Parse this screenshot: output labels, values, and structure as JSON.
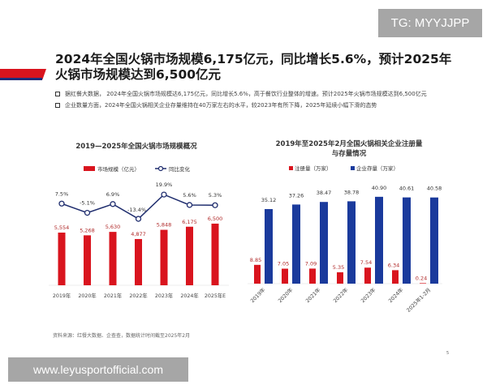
{
  "watermark_tg": "TG: MYYJJPP",
  "title": "2024年全国火锅市场规模6,175亿元，同比增长5.6%，预计2025年火锅市场规模达到6,500亿元",
  "bullets": [
    "据红餐大数据， 2024年全国火锅市场规模达6,175亿元，同比增长5.6%，高于餐饮行业整体的增速。预计2025年火锅市场规模达到6,500亿元",
    "企业数量方面，2024年全国火锅相关企业存量维持在40万家左右的水平，较2023年有所下降，2025年延续小幅下滑的态势"
  ],
  "source": "资料来源：红餐大数据、企查查，数据统计时间截至2025年2月",
  "page_number": "5",
  "website": "www.leyusportofficial.com",
  "colors": {
    "red": "#d9141e",
    "navy": "#1f2d6e",
    "blue": "#1a3a9c"
  },
  "chart_data": [
    {
      "type": "bar+line",
      "title": "2019—2025年全国火锅市场规模概况",
      "categories": [
        "2019年",
        "2020年",
        "2021年",
        "2022年",
        "2023年",
        "2024年",
        "2025年E"
      ],
      "series": [
        {
          "name": "市场规模（亿元）",
          "type": "bar",
          "values": [
            5554,
            5268,
            5630,
            4877,
            5848,
            6175,
            6500
          ],
          "labels": [
            "5,554",
            "5,268",
            "5,630",
            "4,877",
            "5,848",
            "6,175",
            "6,500"
          ]
        },
        {
          "name": "同比变化",
          "type": "line",
          "values": [
            7.5,
            -5.1,
            6.9,
            -13.4,
            19.9,
            5.6,
            5.3
          ],
          "labels": [
            "7.5%",
            "-5.1%",
            "6.9%",
            "-13.4%",
            "19.9%",
            "5.6%",
            "5.3%"
          ]
        }
      ],
      "legend": "top",
      "grid": false
    },
    {
      "type": "bar",
      "title": "2019年至2025年2月全国火锅相关企业注册量与存量情况",
      "categories": [
        "2019年",
        "2020年",
        "2021年",
        "2022年",
        "2023年",
        "2024年",
        "2025年1-2月"
      ],
      "series": [
        {
          "name": "注册量（万家）",
          "values": [
            8.85,
            7.05,
            7.09,
            5.35,
            7.54,
            6.34,
            0.24
          ],
          "labels": [
            "8.85",
            "7.05",
            "7.09",
            "5.35",
            "7.54",
            "6.34",
            "0.24"
          ]
        },
        {
          "name": "企业存量（万家）",
          "values": [
            35.12,
            37.26,
            38.47,
            38.78,
            40.9,
            40.61,
            40.58
          ],
          "labels": [
            "35.12",
            "37.26",
            "38.47",
            "38.78",
            "40.90",
            "40.61",
            "40.58"
          ]
        }
      ],
      "legend": "top",
      "grid": false
    }
  ]
}
